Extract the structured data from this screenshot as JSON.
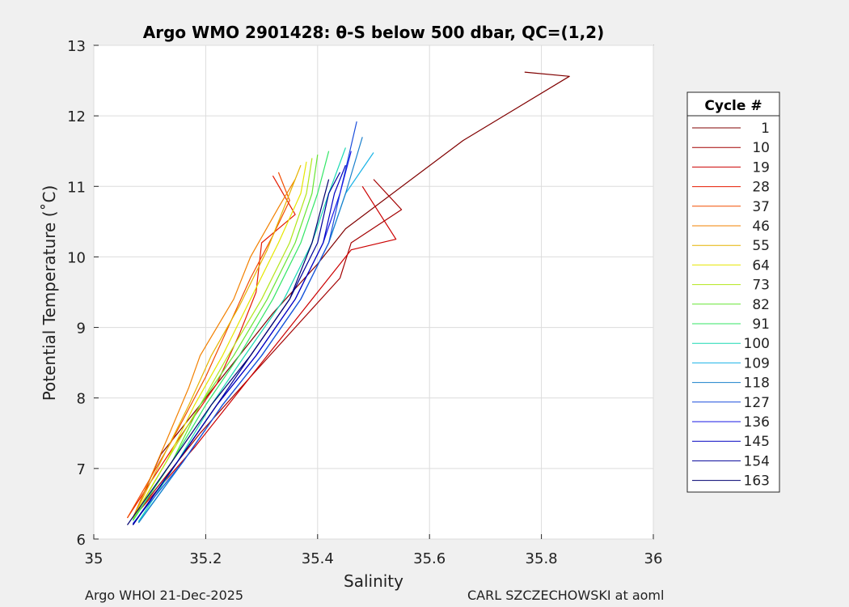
{
  "chart_data": {
    "type": "line",
    "title": "Argo WMO 2901428: θ-S below 500 dbar,  QC=(1,2)",
    "xlabel": "Salinity",
    "ylabel": "Potential Temperature (˚C)",
    "xlim": [
      35,
      36
    ],
    "ylim": [
      6,
      13
    ],
    "xticks": [
      "35",
      "35.2",
      "35.4",
      "35.6",
      "35.8",
      "36"
    ],
    "yticks": [
      "6",
      "7",
      "8",
      "9",
      "10",
      "11",
      "12",
      "13"
    ],
    "grid": true,
    "legend": {
      "title": "Cycle #",
      "position": "right",
      "entries": [
        {
          "label": "1",
          "color": "#800000"
        },
        {
          "label": "10",
          "color": "#a30000"
        },
        {
          "label": "19",
          "color": "#cc0000"
        },
        {
          "label": "28",
          "color": "#e61a00"
        },
        {
          "label": "37",
          "color": "#f24d00"
        },
        {
          "label": "46",
          "color": "#f28000"
        },
        {
          "label": "55",
          "color": "#e6b300"
        },
        {
          "label": "64",
          "color": "#e6e600"
        },
        {
          "label": "73",
          "color": "#b3e61a"
        },
        {
          "label": "82",
          "color": "#66e633"
        },
        {
          "label": "91",
          "color": "#33e666"
        },
        {
          "label": "100",
          "color": "#1ad9b3"
        },
        {
          "label": "109",
          "color": "#1ab3e6"
        },
        {
          "label": "118",
          "color": "#1a80cc"
        },
        {
          "label": "127",
          "color": "#1a4ddb"
        },
        {
          "label": "136",
          "color": "#1a1ae6"
        },
        {
          "label": "145",
          "color": "#0000c0"
        },
        {
          "label": "154",
          "color": "#00009a"
        },
        {
          "label": "163",
          "color": "#000070"
        }
      ]
    },
    "series": [
      {
        "color": "#800000",
        "points": [
          [
            35.77,
            12.62
          ],
          [
            35.85,
            12.56
          ],
          [
            35.66,
            11.65
          ],
          [
            35.45,
            10.4
          ],
          [
            35.4,
            9.9
          ],
          [
            35.32,
            9.2
          ],
          [
            35.22,
            8.2
          ],
          [
            35.12,
            7.2
          ],
          [
            35.07,
            6.3
          ]
        ]
      },
      {
        "color": "#a30000",
        "points": [
          [
            35.5,
            11.1
          ],
          [
            35.55,
            10.67
          ],
          [
            35.46,
            10.2
          ],
          [
            35.44,
            9.7
          ],
          [
            35.36,
            9.0
          ],
          [
            35.28,
            8.3
          ],
          [
            35.19,
            7.5
          ],
          [
            35.08,
            6.4
          ]
        ]
      },
      {
        "color": "#cc0000",
        "points": [
          [
            35.48,
            11.0
          ],
          [
            35.54,
            10.25
          ],
          [
            35.46,
            10.1
          ],
          [
            35.4,
            9.5
          ],
          [
            35.33,
            8.8
          ],
          [
            35.26,
            8.1
          ],
          [
            35.18,
            7.3
          ],
          [
            35.07,
            6.3
          ]
        ]
      },
      {
        "color": "#e61a00",
        "points": [
          [
            35.32,
            11.15
          ],
          [
            35.36,
            10.6
          ],
          [
            35.3,
            10.2
          ],
          [
            35.29,
            9.5
          ],
          [
            35.26,
            8.9
          ],
          [
            35.22,
            8.2
          ],
          [
            35.15,
            7.4
          ],
          [
            35.06,
            6.3
          ]
        ]
      },
      {
        "color": "#f24d00",
        "points": [
          [
            35.33,
            11.2
          ],
          [
            35.35,
            10.8
          ],
          [
            35.32,
            10.3
          ],
          [
            35.28,
            9.7
          ],
          [
            35.24,
            9.0
          ],
          [
            35.2,
            8.3
          ],
          [
            35.14,
            7.4
          ],
          [
            35.06,
            6.3
          ]
        ]
      },
      {
        "color": "#f28000",
        "points": [
          [
            35.36,
            11.1
          ],
          [
            35.33,
            10.7
          ],
          [
            35.28,
            10.0
          ],
          [
            35.25,
            9.4
          ],
          [
            35.19,
            8.6
          ],
          [
            35.17,
            8.15
          ],
          [
            35.13,
            7.4
          ],
          [
            35.07,
            6.3
          ]
        ]
      },
      {
        "color": "#e6b300",
        "points": [
          [
            35.37,
            11.3
          ],
          [
            35.35,
            10.9
          ],
          [
            35.31,
            10.1
          ],
          [
            35.26,
            9.3
          ],
          [
            35.21,
            8.6
          ],
          [
            35.17,
            7.9
          ],
          [
            35.12,
            7.1
          ],
          [
            35.07,
            6.3
          ]
        ]
      },
      {
        "color": "#e6e600",
        "points": [
          [
            35.38,
            11.35
          ],
          [
            35.37,
            10.9
          ],
          [
            35.33,
            10.2
          ],
          [
            35.28,
            9.4
          ],
          [
            35.23,
            8.6
          ],
          [
            35.18,
            7.9
          ],
          [
            35.13,
            7.1
          ],
          [
            35.07,
            6.3
          ]
        ]
      },
      {
        "color": "#b3e61a",
        "points": [
          [
            35.39,
            11.4
          ],
          [
            35.38,
            10.9
          ],
          [
            35.35,
            10.2
          ],
          [
            35.3,
            9.4
          ],
          [
            35.24,
            8.6
          ],
          [
            35.19,
            7.9
          ],
          [
            35.13,
            7.1
          ],
          [
            35.07,
            6.28
          ]
        ]
      },
      {
        "color": "#66e633",
        "points": [
          [
            35.4,
            11.45
          ],
          [
            35.39,
            10.9
          ],
          [
            35.36,
            10.2
          ],
          [
            35.31,
            9.4
          ],
          [
            35.25,
            8.6
          ],
          [
            35.19,
            7.9
          ],
          [
            35.14,
            7.1
          ],
          [
            35.07,
            6.27
          ]
        ]
      },
      {
        "color": "#33e666",
        "points": [
          [
            35.42,
            11.5
          ],
          [
            35.4,
            10.9
          ],
          [
            35.37,
            10.2
          ],
          [
            35.32,
            9.4
          ],
          [
            35.26,
            8.6
          ],
          [
            35.2,
            7.9
          ],
          [
            35.14,
            7.1
          ],
          [
            35.07,
            6.26
          ]
        ]
      },
      {
        "color": "#1ad9b3",
        "points": [
          [
            35.45,
            11.55
          ],
          [
            35.42,
            10.9
          ],
          [
            35.39,
            10.2
          ],
          [
            35.34,
            9.4
          ],
          [
            35.27,
            8.6
          ],
          [
            35.21,
            7.9
          ],
          [
            35.15,
            7.1
          ],
          [
            35.08,
            6.25
          ]
        ]
      },
      {
        "color": "#1ab3e6",
        "points": [
          [
            35.5,
            11.48
          ],
          [
            35.45,
            10.9
          ],
          [
            35.42,
            10.2
          ],
          [
            35.37,
            9.4
          ],
          [
            35.3,
            8.6
          ],
          [
            35.23,
            7.9
          ],
          [
            35.16,
            7.1
          ],
          [
            35.08,
            6.24
          ]
        ]
      },
      {
        "color": "#1a80cc",
        "points": [
          [
            35.48,
            11.7
          ],
          [
            35.45,
            10.9
          ],
          [
            35.42,
            10.2
          ],
          [
            35.37,
            9.4
          ],
          [
            35.3,
            8.6
          ],
          [
            35.23,
            7.9
          ],
          [
            35.16,
            7.1
          ],
          [
            35.08,
            6.23
          ]
        ]
      },
      {
        "color": "#1a4ddb",
        "points": [
          [
            35.47,
            11.92
          ],
          [
            35.44,
            10.9
          ],
          [
            35.42,
            10.2
          ],
          [
            35.37,
            9.4
          ],
          [
            35.3,
            8.6
          ],
          [
            35.23,
            7.9
          ],
          [
            35.16,
            7.1
          ],
          [
            35.07,
            6.22
          ]
        ]
      },
      {
        "color": "#1a1ae6",
        "points": [
          [
            35.46,
            11.5
          ],
          [
            35.44,
            10.9
          ],
          [
            35.41,
            10.2
          ],
          [
            35.36,
            9.4
          ],
          [
            35.29,
            8.6
          ],
          [
            35.22,
            7.9
          ],
          [
            35.15,
            7.1
          ],
          [
            35.07,
            6.21
          ]
        ]
      },
      {
        "color": "#0000c0",
        "points": [
          [
            35.45,
            11.3
          ],
          [
            35.43,
            10.9
          ],
          [
            35.41,
            10.2
          ],
          [
            35.36,
            9.4
          ],
          [
            35.29,
            8.6
          ],
          [
            35.22,
            7.9
          ],
          [
            35.15,
            7.1
          ],
          [
            35.07,
            6.2
          ]
        ]
      },
      {
        "color": "#00009a",
        "points": [
          [
            35.44,
            11.2
          ],
          [
            35.42,
            10.9
          ],
          [
            35.4,
            10.2
          ],
          [
            35.35,
            9.4
          ],
          [
            35.28,
            8.6
          ],
          [
            35.22,
            7.9
          ],
          [
            35.15,
            7.1
          ],
          [
            35.07,
            6.2
          ]
        ]
      },
      {
        "color": "#000070",
        "points": [
          [
            35.42,
            11.1
          ],
          [
            35.41,
            10.8
          ],
          [
            35.39,
            10.2
          ],
          [
            35.35,
            9.4
          ],
          [
            35.28,
            8.6
          ],
          [
            35.21,
            7.9
          ],
          [
            35.14,
            7.1
          ],
          [
            35.06,
            6.2
          ]
        ]
      }
    ]
  },
  "footer": {
    "left": "Argo WHOI 21-Dec-2025",
    "right": "CARL SZCZECHOWSKI at aoml"
  }
}
